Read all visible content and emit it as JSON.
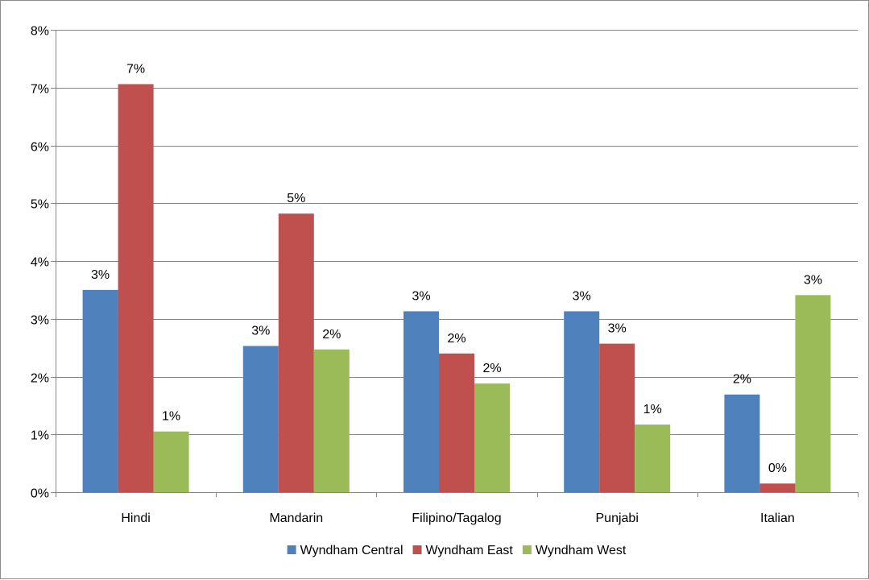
{
  "chart_data": {
    "type": "bar",
    "title": "",
    "xlabel": "",
    "ylabel": "",
    "categories": [
      "Hindi",
      "Mandarin",
      "Filipino/Tagalog",
      "Punjabi",
      "Italian"
    ],
    "series": [
      {
        "name": "Wyndham Central",
        "color": "#4f81bd",
        "values": [
          0.035,
          0.0253,
          0.0313,
          0.0313,
          0.0169
        ],
        "labels": [
          "3%",
          "3%",
          "3%",
          "3%",
          "2%"
        ]
      },
      {
        "name": "Wyndham East",
        "color": "#c0504d",
        "values": [
          0.0706,
          0.0482,
          0.024,
          0.0257,
          0.0015
        ],
        "labels": [
          "7%",
          "5%",
          "2%",
          "3%",
          "0%"
        ]
      },
      {
        "name": "Wyndham West",
        "color": "#9bbb59",
        "values": [
          0.0105,
          0.0247,
          0.0188,
          0.0117,
          0.0341
        ],
        "labels": [
          "1%",
          "2%",
          "2%",
          "1%",
          "3%"
        ]
      }
    ],
    "ylim": [
      0,
      0.08
    ],
    "yticks": [
      0,
      0.01,
      0.02,
      0.03,
      0.04,
      0.05,
      0.06,
      0.07,
      0.08
    ],
    "ytick_labels": [
      "0%",
      "1%",
      "2%",
      "3%",
      "4%",
      "5%",
      "6%",
      "7%",
      "8%"
    ],
    "grid": true,
    "legend_position": "bottom"
  }
}
